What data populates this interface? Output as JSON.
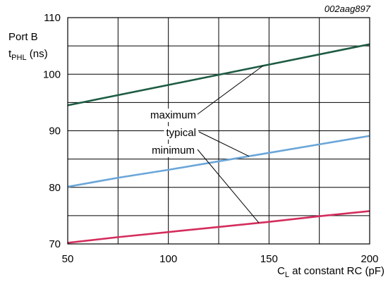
{
  "chart_data": {
    "type": "line",
    "figure_id": "002aag897",
    "ylabel": {
      "line1": "Port B",
      "main": "t",
      "sub": "PHL",
      "unit": " (ns)"
    },
    "xlabel": {
      "main": "C",
      "sub": "L",
      "rest": " at constant RC (pF)"
    },
    "xlim": [
      50,
      200
    ],
    "ylim": [
      70,
      110
    ],
    "x_ticks": [
      50,
      100,
      150,
      200
    ],
    "y_ticks": [
      70,
      80,
      90,
      100,
      110
    ],
    "grid": true,
    "series": [
      {
        "name": "maximum",
        "color": "#1d5c43",
        "x": [
          50,
          200
        ],
        "y": [
          94.5,
          105.3
        ]
      },
      {
        "name": "typical",
        "color": "#6aa6d9",
        "x": [
          50,
          75,
          100,
          125,
          150,
          175,
          200
        ],
        "y": [
          80.1,
          81.7,
          83.1,
          84.6,
          86.1,
          87.6,
          89.1
        ]
      },
      {
        "name": "minimum",
        "color": "#d42d5c",
        "x": [
          50,
          75,
          100,
          125,
          150,
          175,
          200
        ],
        "y": [
          70.2,
          71.2,
          72.1,
          73.0,
          73.9,
          74.9,
          75.8
        ]
      }
    ],
    "annotations": [
      {
        "text": "maximum",
        "points_to": "maximum",
        "target_x": 147
      },
      {
        "text": "typical",
        "points_to": "typical",
        "target_x": 140
      },
      {
        "text": "minimum",
        "points_to": "minimum",
        "target_x": 145
      }
    ]
  }
}
